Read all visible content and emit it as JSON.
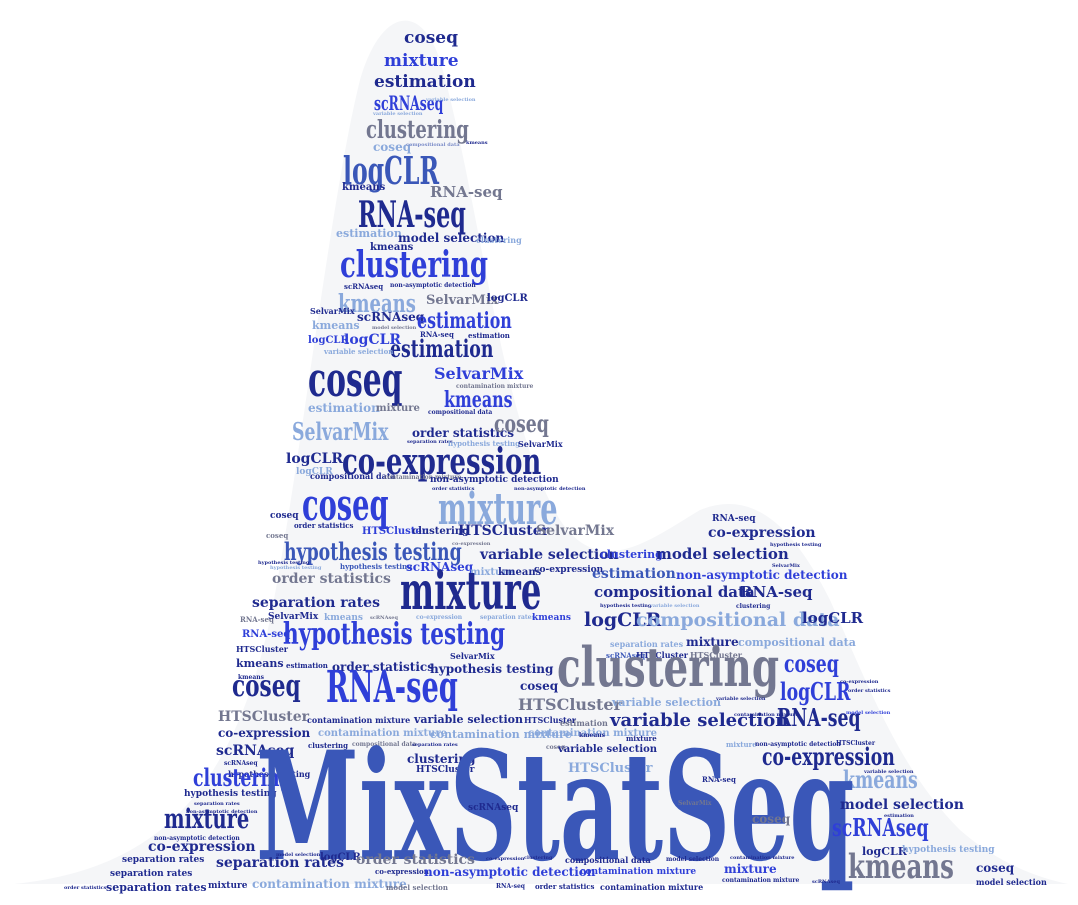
{
  "colors": {
    "navy": "#1f2a8f",
    "royal": "#2f3fd8",
    "periwinkle": "#7b8cc8",
    "slate": "#737790",
    "medium": "#3a57b8",
    "light": "#8aa9dc",
    "silhouette": "#f5f6f8"
  },
  "words": {
    "main_title": "MixStatSeq",
    "coseq": "coseq",
    "mixture": "mixture",
    "estimation": "estimation",
    "scrnaseq": "scRNAseq",
    "variable_selection": "variable selection",
    "clustering": "clustering",
    "compositional_data": "compositional data",
    "logclr": "logCLR",
    "kmeans": "kmeans",
    "rnaseq": "RNA-seq",
    "model_selection": "model selection",
    "non_asymptotic_detection": "non-asymptotic detection",
    "selvarmix": "SelvarMix",
    "contamination_mixture": "contamination mixture",
    "order_statistics": "order statistics",
    "separation_rates": "separation rates",
    "hypothesis_testing": "hypothesis testing",
    "co_expression": "co-expression",
    "htscluster": "HTSCluster"
  }
}
